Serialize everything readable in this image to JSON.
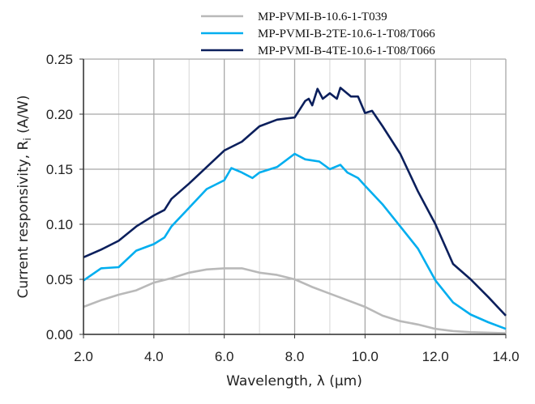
{
  "chart_data": {
    "type": "line",
    "title": "",
    "xlabel": "Wavelength, λ (μm)",
    "ylabel_main": "Current responsivity, R",
    "ylabel_sub": "i",
    "ylabel_unit": " (A/W)",
    "xlim": [
      2.0,
      14.0
    ],
    "ylim": [
      0,
      0.25
    ],
    "xticks": [
      "2.0",
      "4.0",
      "6.0",
      "8.0",
      "10.0",
      "12.0",
      "14.0"
    ],
    "xtick_values": [
      2,
      4,
      6,
      8,
      10,
      12,
      14
    ],
    "yticks": [
      "0.00",
      "0.05",
      "0.10",
      "0.15",
      "0.20",
      "0.25"
    ],
    "ytick_values": [
      0,
      0.05,
      0.1,
      0.15,
      0.2,
      0.25
    ],
    "grid": true,
    "legend_placement": "top",
    "series": [
      {
        "name": "MP-PVMI-B-10.6-1-T039",
        "color": "#b9b9b9",
        "x": [
          2,
          2.5,
          3,
          3.5,
          4,
          4.5,
          5,
          5.5,
          6,
          6.5,
          7,
          7.5,
          8,
          8.5,
          9,
          9.5,
          10,
          10.5,
          11,
          11.5,
          12,
          12.5,
          13,
          14
        ],
        "y": [
          0.025,
          0.031,
          0.036,
          0.04,
          0.047,
          0.051,
          0.056,
          0.059,
          0.06,
          0.06,
          0.056,
          0.054,
          0.05,
          0.043,
          0.037,
          0.031,
          0.025,
          0.017,
          0.012,
          0.009,
          0.005,
          0.003,
          0.002,
          0.001
        ]
      },
      {
        "name": "MP-PVMI-B-2TE-10.6-1-T08/T066",
        "color": "#00aeef",
        "x": [
          2,
          2.5,
          3,
          3.5,
          4,
          4.3,
          4.5,
          5,
          5.5,
          6,
          6.2,
          6.5,
          6.8,
          7,
          7.5,
          8,
          8.3,
          8.7,
          9,
          9.3,
          9.5,
          9.8,
          10,
          10.5,
          11,
          11.5,
          12,
          12.5,
          13,
          13.5,
          14
        ],
        "y": [
          0.049,
          0.06,
          0.061,
          0.076,
          0.082,
          0.088,
          0.098,
          0.115,
          0.132,
          0.14,
          0.151,
          0.147,
          0.142,
          0.147,
          0.152,
          0.164,
          0.159,
          0.157,
          0.15,
          0.154,
          0.147,
          0.142,
          0.135,
          0.118,
          0.098,
          0.078,
          0.049,
          0.029,
          0.018,
          0.011,
          0.005
        ]
      },
      {
        "name": "MP-PVMI-B-4TE-10.6-1-T08/T066",
        "color": "#0b1f5c",
        "x": [
          2,
          2.5,
          3,
          3.5,
          4,
          4.3,
          4.5,
          5,
          5.5,
          6,
          6.5,
          7,
          7.5,
          8,
          8.3,
          8.4,
          8.5,
          8.65,
          8.8,
          9,
          9.2,
          9.3,
          9.6,
          9.8,
          10,
          10.2,
          10.5,
          11,
          11.5,
          12,
          12.5,
          13,
          13.5,
          14
        ],
        "y": [
          0.07,
          0.077,
          0.085,
          0.098,
          0.108,
          0.113,
          0.123,
          0.137,
          0.152,
          0.167,
          0.175,
          0.189,
          0.195,
          0.197,
          0.212,
          0.214,
          0.208,
          0.223,
          0.214,
          0.219,
          0.214,
          0.224,
          0.216,
          0.216,
          0.201,
          0.203,
          0.189,
          0.164,
          0.13,
          0.1,
          0.064,
          0.05,
          0.034,
          0.017
        ]
      }
    ]
  }
}
